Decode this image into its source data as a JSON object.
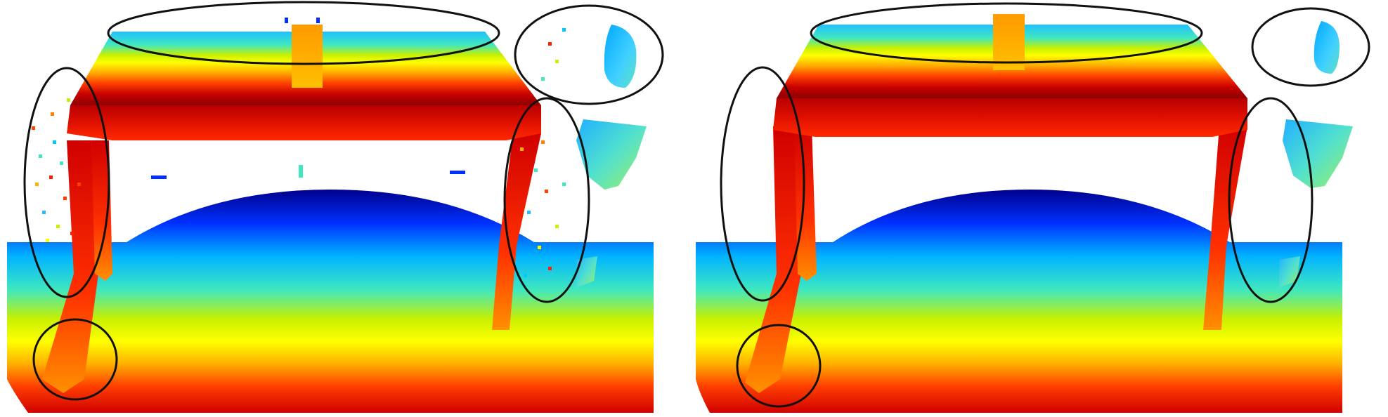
{
  "figure": {
    "panels": [
      {
        "id": "raw",
        "depiction": "noisy-depth-point-cloud"
      },
      {
        "id": "filtered",
        "depiction": "denoised-depth-point-cloud"
      }
    ],
    "colormap": [
      "#00008c",
      "#0040ff",
      "#00c8ff",
      "#40e8c0",
      "#c8f000",
      "#ffff00",
      "#ffb000",
      "#ff4000",
      "#c80000",
      "#8c0000"
    ],
    "highlight_stroke": "#111111"
  }
}
